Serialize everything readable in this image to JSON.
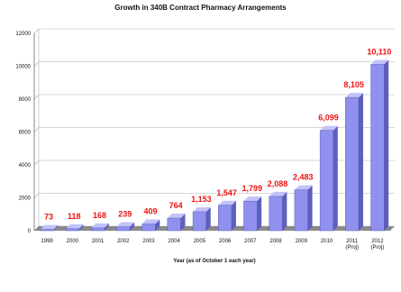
{
  "chart_data": {
    "type": "bar",
    "title": "Growth in 340B Contract Pharmacy Arrangements",
    "xlabel": "Year (as of October 1 each year)",
    "ylabel": "",
    "categories": [
      "1999",
      "2000",
      "2001",
      "2002",
      "2003",
      "2004",
      "2005",
      "2006",
      "2007",
      "2008",
      "2009",
      "2010",
      "2011",
      "2012"
    ],
    "category_sublabels": [
      "",
      "",
      "",
      "",
      "",
      "",
      "",
      "",
      "",
      "",
      "",
      "",
      "(Proj)",
      "(Proj)"
    ],
    "values": [
      73,
      118,
      168,
      239,
      409,
      764,
      1153,
      1547,
      1799,
      2088,
      2483,
      6099,
      8105,
      10110
    ],
    "value_labels": [
      "73",
      "118",
      "168",
      "239",
      "409",
      "764",
      "1,153",
      "1,547",
      "1,799",
      "2,088",
      "2,483",
      "6,099",
      "8,105",
      "10,110"
    ],
    "ylim": [
      0,
      12000
    ],
    "yticks": [
      0,
      2000,
      4000,
      6000,
      8000,
      10000,
      12000
    ],
    "ytick_labels": [
      "0",
      "2000",
      "4000",
      "6000",
      "8000",
      "10000",
      "12000"
    ],
    "grid": true,
    "legend": "none",
    "colors": {
      "bar_front": "#9090ee",
      "bar_top": "#c2c2fa",
      "bar_side": "#5e5ebd",
      "value_label": "#ee1111",
      "gridline": "#b0b0b0",
      "floor": "#8a8a8a"
    }
  }
}
